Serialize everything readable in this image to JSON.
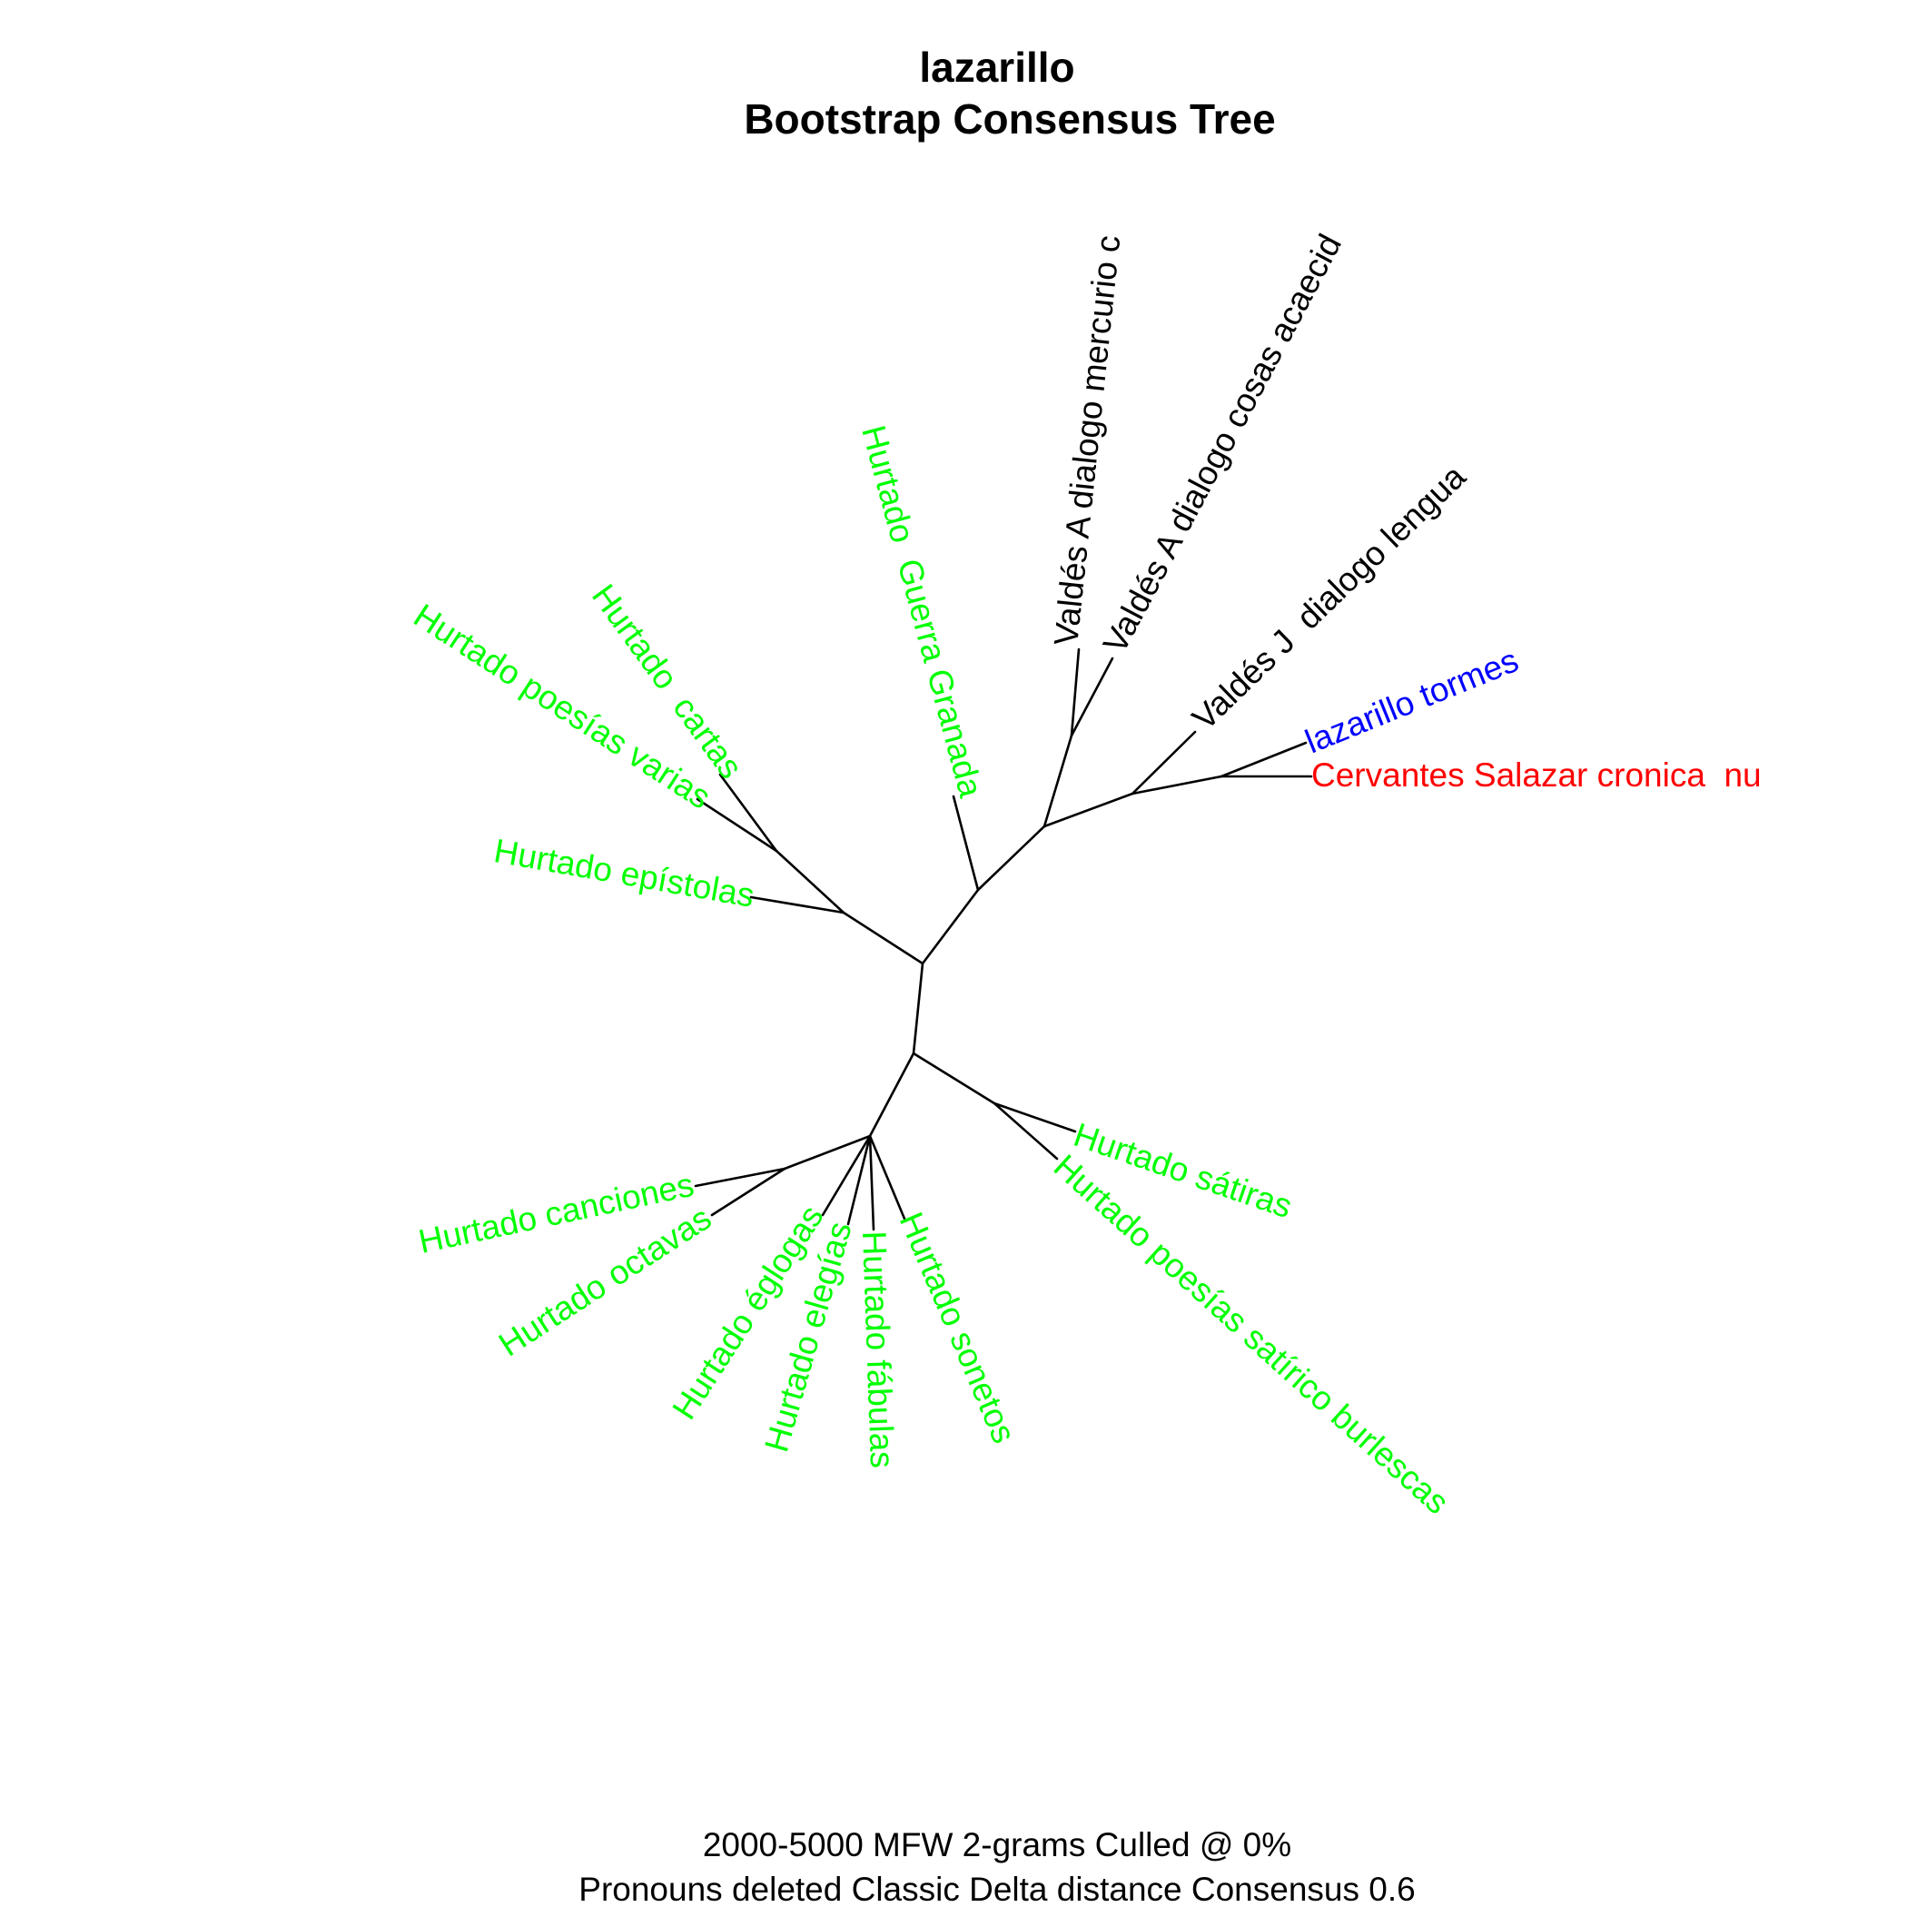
{
  "title": {
    "line1": "lazarillo",
    "line2": "Bootstrap Consensus Tree"
  },
  "caption": {
    "line1": "2000-5000 MFW 2-grams Culled @ 0%",
    "line2": "Pronouns deleted Classic Delta distance Consensus 0.6"
  },
  "colors": {
    "hurtado": "#00ff00",
    "valdes": "#000000",
    "lazarillo": "#0000ff",
    "cervantes": "#ff0000",
    "branches": "#000000"
  },
  "tips": {
    "valdes_a_mercurio": "Valdés A dialogo mercurio c",
    "valdes_a_cosas": "Valdés A dialogo cosas acaecid",
    "valdes_j_lengua": "Valdés J  dialogo lengua",
    "lazarillo_tormes": "lazarillo tormes",
    "cervantes_salazar": "Cervantes Salazar cronica  nu",
    "hurtado_guerra_granada": "Hurtado  Guerra Granada",
    "hurtado_cartas": "Hurtado  cartas",
    "hurtado_poesias_varias": "Hurtado poesías varias",
    "hurtado_epistolas": "Hurtado epístolas",
    "hurtado_canciones": "Hurtado canciones",
    "hurtado_octavas": "Hurtado octavas",
    "hurtado_eglogas": "Hurtado églogas",
    "hurtado_elegias": "Hurtado elegías",
    "hurtado_fabulas": "Hurtado fábulas",
    "hurtado_sonetos": "Hurtado sonetos",
    "hurtado_satiras": "Hurtado sátiras",
    "hurtado_poesias_satirico": "Hurtado poesías satírico burlescas"
  }
}
